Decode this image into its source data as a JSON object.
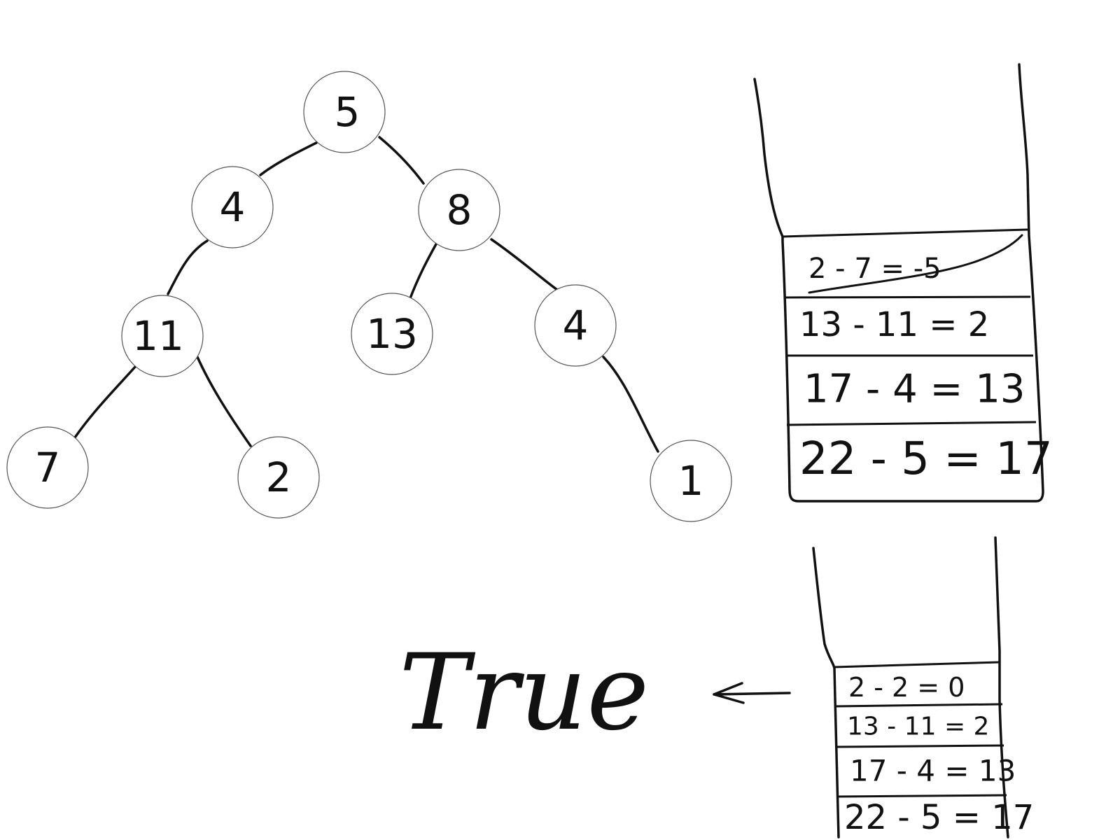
{
  "tree": {
    "nodes": [
      {
        "id": "n5",
        "label": "5"
      },
      {
        "id": "n4a",
        "label": "4"
      },
      {
        "id": "n8",
        "label": "8"
      },
      {
        "id": "n11",
        "label": "11"
      },
      {
        "id": "n13",
        "label": "13"
      },
      {
        "id": "n4b",
        "label": "4"
      },
      {
        "id": "n7",
        "label": "7"
      },
      {
        "id": "n2",
        "label": "2"
      },
      {
        "id": "n1",
        "label": "1"
      }
    ],
    "edges": [
      [
        "n5",
        "n4a"
      ],
      [
        "n5",
        "n8"
      ],
      [
        "n4a",
        "n11"
      ],
      [
        "n8",
        "n13"
      ],
      [
        "n8",
        "n4b"
      ],
      [
        "n11",
        "n7"
      ],
      [
        "n11",
        "n2"
      ],
      [
        "n4b",
        "n1"
      ]
    ]
  },
  "stack_1": {
    "rows": [
      {
        "text": "2 - 7 = -5",
        "crossed_out": true
      },
      {
        "text": "13 - 11 = 2",
        "crossed_out": false
      },
      {
        "text": "17 - 4 = 13",
        "crossed_out": false
      },
      {
        "text": "22 - 5 = 17",
        "crossed_out": false
      }
    ]
  },
  "stack_2": {
    "rows": [
      {
        "text": "2 - 2 = 0"
      },
      {
        "text": "13 - 11 = 2"
      },
      {
        "text": "17 - 4 = 13"
      },
      {
        "text": "22 - 5 = 17"
      }
    ]
  },
  "result": {
    "text": "True"
  }
}
